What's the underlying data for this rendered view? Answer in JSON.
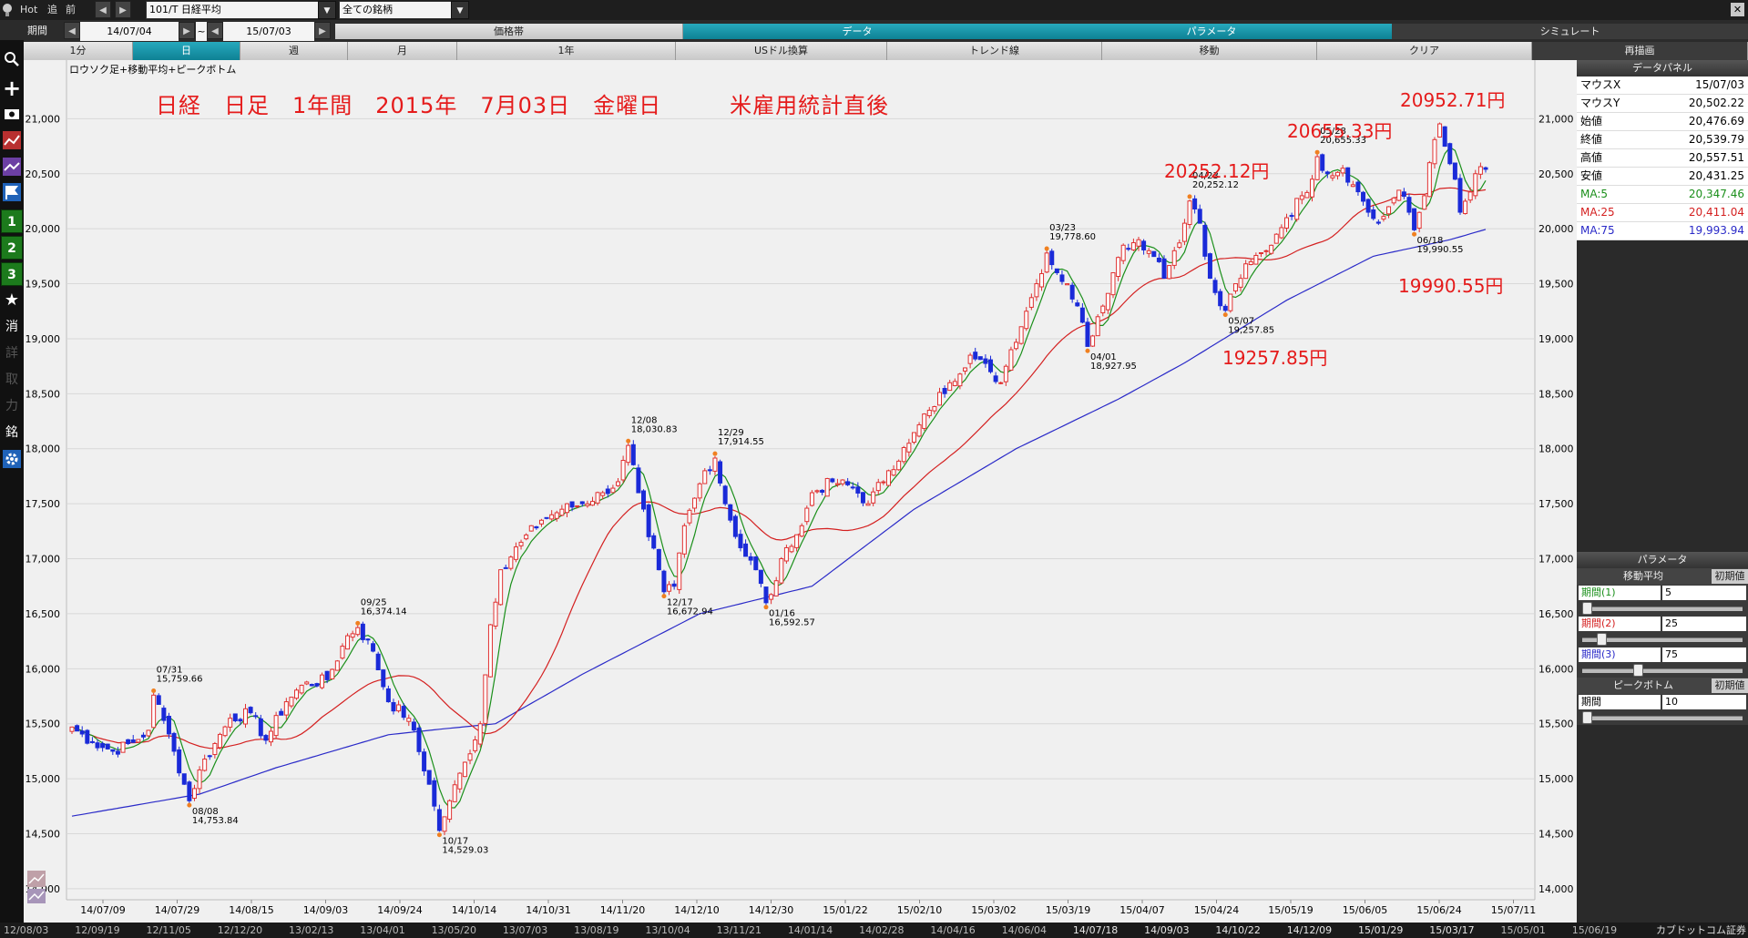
{
  "toolbar": {
    "hot": "Hot",
    "tsui": "追",
    "mae": "前",
    "symbol": "101/T 日経平均",
    "filter": "全ての銘柄",
    "kikan_label": "期間",
    "date_from": "14/07/04",
    "tilde": "~",
    "date_to": "15/07/03"
  },
  "menu_tabs": [
    "価格帯",
    "データ",
    "パラメータ",
    "シミュレート"
  ],
  "timeframe_buttons": [
    "1分",
    "日",
    "週",
    "月",
    "1年",
    "USドル換算",
    "トレンド線",
    "移動",
    "クリア",
    "再描画"
  ],
  "sidebar": [
    "1",
    "2",
    "3",
    "消",
    "詳",
    "取",
    "力",
    "銘"
  ],
  "chart_title": "ロウソク足+移動平均+ピークボトム",
  "annotations": {
    "headline": "日経　日足　1年間　2015年　7月03日　金曜日　　　米雇用統計直後",
    "p1": "20952.71円",
    "p2": "20655.33円",
    "p3": "20252.12円",
    "p4": "19990.55円",
    "p5": "19257.85円"
  },
  "data_panel": {
    "title": "データパネル",
    "rows": [
      {
        "label": "マウスX",
        "value": "15/07/03",
        "color": "#000000"
      },
      {
        "label": "マウスY",
        "value": "20,502.22",
        "color": "#000000"
      },
      {
        "label": "始値",
        "value": "20,476.69",
        "color": "#000000"
      },
      {
        "label": "終値",
        "value": "20,539.79",
        "color": "#000000"
      },
      {
        "label": "高値",
        "value": "20,557.51",
        "color": "#000000"
      },
      {
        "label": "安値",
        "value": "20,431.25",
        "color": "#000000"
      },
      {
        "label": "MA:5",
        "value": "20,347.46",
        "color": "#1a8f1a"
      },
      {
        "label": "MA:25",
        "value": "20,411.04",
        "color": "#d42020"
      },
      {
        "label": "MA:75",
        "value": "19,993.94",
        "color": "#2a2ac8"
      }
    ]
  },
  "param_panel": {
    "title": "パラメータ",
    "ma_title": "移動平均",
    "reset": "初期値",
    "rows": [
      {
        "label": "期間(1)",
        "value": "5",
        "color": "#1a8f1a",
        "pos": 0.0
      },
      {
        "label": "期間(2)",
        "value": "25",
        "color": "#d42020",
        "pos": 0.1
      },
      {
        "label": "期間(3)",
        "value": "75",
        "color": "#2a2ac8",
        "pos": 0.35
      }
    ],
    "pb_title": "ピークボトム",
    "pb_row": {
      "label": "期間",
      "value": "10",
      "pos": 0.0
    }
  },
  "bottom_dates": [
    "12/08/03",
    "12/09/19",
    "12/11/05",
    "12/12/20",
    "13/02/13",
    "13/04/01",
    "13/05/20",
    "13/07/03",
    "13/08/19",
    "13/10/04",
    "13/11/21",
    "14/01/14",
    "14/02/28",
    "14/04/16",
    "14/06/04",
    "14/07/18",
    "14/09/03",
    "14/10/22",
    "14/12/09",
    "15/01/29",
    "15/03/17",
    "15/05/01",
    "15/06/19"
  ],
  "bottom_brand": "カブドットコム証券",
  "chart_data": {
    "type": "candlestick",
    "title": "ロウソク足+移動平均+ピークボトム",
    "ylim": [
      13900,
      21450
    ],
    "y_ticks": [
      14000,
      14500,
      15000,
      15500,
      16000,
      16500,
      17000,
      17500,
      18000,
      18500,
      19000,
      19500,
      20000,
      20500,
      21000
    ],
    "y_tick_labels": [
      "14,000",
      "14,500",
      "15,000",
      "15,500",
      "16,000",
      "16,500",
      "17,000",
      "17,500",
      "18,000",
      "18,500",
      "19,000",
      "19,500",
      "20,000",
      "20,500",
      "21,000"
    ],
    "x_tick_labels": [
      "14/07/09",
      "14/07/29",
      "14/08/15",
      "14/09/03",
      "14/09/24",
      "14/10/14",
      "14/10/31",
      "14/11/20",
      "14/12/10",
      "14/12/30",
      "15/01/22",
      "15/02/10",
      "15/03/02",
      "15/03/19",
      "15/04/07",
      "15/04/24",
      "15/05/19",
      "15/06/05",
      "15/06/24",
      "15/07/11"
    ],
    "series": [
      {
        "name": "MA:5",
        "color": "#1a8f1a"
      },
      {
        "name": "MA:25",
        "color": "#d42020"
      },
      {
        "name": "MA:75",
        "color": "#2a2ac8"
      }
    ],
    "close_keypoints": [
      [
        0,
        15470
      ],
      [
        4,
        15330
      ],
      [
        8,
        15250
      ],
      [
        12,
        15330
      ],
      [
        15,
        15440
      ],
      [
        16,
        15760
      ],
      [
        18,
        15530
      ],
      [
        20,
        15250
      ],
      [
        23,
        14800
      ],
      [
        25,
        15080
      ],
      [
        28,
        15320
      ],
      [
        31,
        15550
      ],
      [
        35,
        15600
      ],
      [
        38,
        15350
      ],
      [
        42,
        15700
      ],
      [
        45,
        15850
      ],
      [
        50,
        15900
      ],
      [
        54,
        16300
      ],
      [
        56,
        16374
      ],
      [
        59,
        16160
      ],
      [
        62,
        15700
      ],
      [
        66,
        15550
      ],
      [
        70,
        14950
      ],
      [
        72,
        14530
      ],
      [
        74,
        14800
      ],
      [
        77,
        15150
      ],
      [
        80,
        15500
      ],
      [
        82,
        16400
      ],
      [
        84,
        16900
      ],
      [
        88,
        17150
      ],
      [
        92,
        17350
      ],
      [
        96,
        17450
      ],
      [
        100,
        17500
      ],
      [
        104,
        17600
      ],
      [
        107,
        17700
      ],
      [
        109,
        18030
      ],
      [
        111,
        17600
      ],
      [
        113,
        17200
      ],
      [
        115,
        16900
      ],
      [
        116,
        16700
      ],
      [
        118,
        16750
      ],
      [
        120,
        17300
      ],
      [
        122,
        17550
      ],
      [
        124,
        17800
      ],
      [
        126,
        17915
      ],
      [
        128,
        17500
      ],
      [
        131,
        17100
      ],
      [
        134,
        16900
      ],
      [
        136,
        16600
      ],
      [
        138,
        16800
      ],
      [
        140,
        17100
      ],
      [
        143,
        17300
      ],
      [
        145,
        17600
      ],
      [
        149,
        17700
      ],
      [
        153,
        17650
      ],
      [
        156,
        17500
      ],
      [
        160,
        17800
      ],
      [
        164,
        18050
      ],
      [
        168,
        18350
      ],
      [
        172,
        18600
      ],
      [
        176,
        18850
      ],
      [
        180,
        18700
      ],
      [
        182,
        18600
      ],
      [
        184,
        18900
      ],
      [
        187,
        19250
      ],
      [
        189,
        19500
      ],
      [
        191,
        19779
      ],
      [
        193,
        19600
      ],
      [
        195,
        19500
      ],
      [
        198,
        19150
      ],
      [
        199,
        18930
      ],
      [
        201,
        19200
      ],
      [
        204,
        19600
      ],
      [
        206,
        19850
      ],
      [
        209,
        19900
      ],
      [
        211,
        19800
      ],
      [
        213,
        19700
      ],
      [
        214,
        19550
      ],
      [
        216,
        19800
      ],
      [
        218,
        20050
      ],
      [
        219,
        20252
      ],
      [
        221,
        20050
      ],
      [
        222,
        19750
      ],
      [
        223,
        19550
      ],
      [
        225,
        19300
      ],
      [
        226,
        19258
      ],
      [
        228,
        19500
      ],
      [
        231,
        19700
      ],
      [
        234,
        19800
      ],
      [
        236,
        19950
      ],
      [
        238,
        20100
      ],
      [
        241,
        20300
      ],
      [
        243,
        20450
      ],
      [
        244,
        20655
      ],
      [
        246,
        20500
      ],
      [
        249,
        20550
      ],
      [
        251,
        20400
      ],
      [
        253,
        20250
      ],
      [
        254,
        20150
      ],
      [
        256,
        20050
      ],
      [
        258,
        20200
      ],
      [
        260,
        20350
      ],
      [
        262,
        20150
      ],
      [
        263,
        19990
      ],
      [
        265,
        20300
      ],
      [
        266,
        20600
      ],
      [
        267,
        20810
      ],
      [
        268,
        20953
      ],
      [
        269,
        20750
      ],
      [
        271,
        20450
      ],
      [
        272,
        20150
      ],
      [
        273,
        20250
      ],
      [
        275,
        20500
      ],
      [
        277,
        20540
      ]
    ],
    "ma75_keypoints": [
      [
        0,
        14660
      ],
      [
        25,
        14860
      ],
      [
        40,
        15100
      ],
      [
        62,
        15400
      ],
      [
        72,
        15450
      ],
      [
        83,
        15500
      ],
      [
        100,
        15950
      ],
      [
        123,
        16500
      ],
      [
        145,
        16750
      ],
      [
        165,
        17450
      ],
      [
        185,
        18000
      ],
      [
        205,
        18450
      ],
      [
        218,
        18780
      ],
      [
        238,
        19350
      ],
      [
        255,
        19750
      ],
      [
        270,
        19900
      ],
      [
        277,
        19994
      ]
    ],
    "peak_bottom_labels": [
      {
        "i": 16,
        "date": "07/31",
        "price": "15,759.66",
        "type": "peak"
      },
      {
        "i": 23,
        "date": "08/08",
        "price": "14,753.84",
        "type": "bottom"
      },
      {
        "i": 56,
        "date": "09/25",
        "price": "16,374.14",
        "type": "peak"
      },
      {
        "i": 72,
        "date": "10/17",
        "price": "14,529.03",
        "type": "bottom"
      },
      {
        "i": 109,
        "date": "12/08",
        "price": "18,030.83",
        "type": "peak"
      },
      {
        "i": 116,
        "date": "12/17",
        "price": "16,672.94",
        "type": "bottom"
      },
      {
        "i": 126,
        "date": "12/29",
        "price": "17,914.55",
        "type": "peak"
      },
      {
        "i": 136,
        "date": "01/16",
        "price": "16,592.57",
        "type": "bottom"
      },
      {
        "i": 191,
        "date": "03/23",
        "price": "19,778.60",
        "type": "peak"
      },
      {
        "i": 199,
        "date": "04/01",
        "price": "18,927.95",
        "type": "bottom"
      },
      {
        "i": 219,
        "date": "04/23",
        "price": "20,252.12",
        "type": "peak"
      },
      {
        "i": 226,
        "date": "05/07",
        "price": "19,257.85",
        "type": "bottom"
      },
      {
        "i": 244,
        "date": "05/28",
        "price": "20,655.33",
        "type": "peak"
      },
      {
        "i": 263,
        "date": "06/18",
        "price": "19,990.55",
        "type": "bottom"
      }
    ],
    "n_bars": 278
  }
}
